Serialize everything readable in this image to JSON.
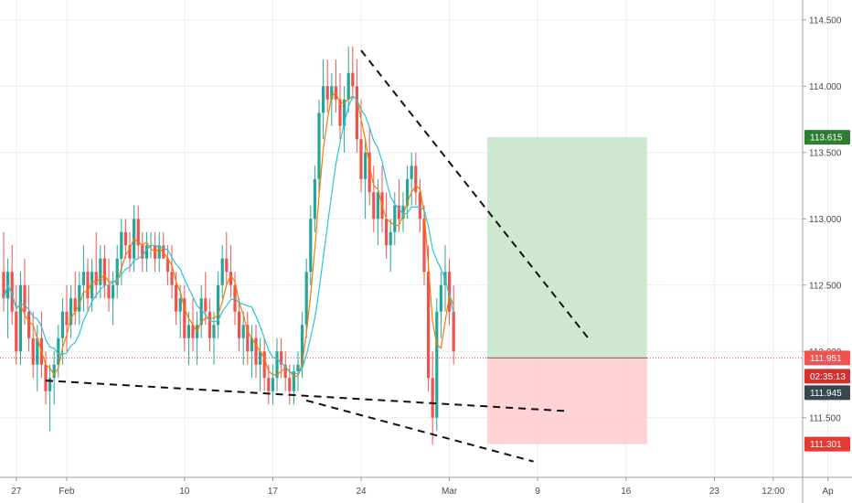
{
  "chart_data": {
    "type": "candlestick",
    "ylim": [
      111.05,
      114.65
    ],
    "grid": true,
    "price_scale_side": "right",
    "colors": {
      "up": "#26a69a",
      "down": "#ef5350",
      "ma_fast": "#f57c00",
      "ma_slow": "#26c6da",
      "profit_zone": "#c8e6c9",
      "loss_zone": "#ffcdd2",
      "current_price": "#ef5350",
      "target_badge": "#2e7d32",
      "stop_badge": "#e53935",
      "countdown_badge": "#d32f2f",
      "last_badge": "#37474f"
    },
    "x_ticks": [
      {
        "label": "27",
        "pos": 3
      },
      {
        "label": "Feb",
        "pos": 15
      },
      {
        "label": "10",
        "pos": 43
      },
      {
        "label": "17",
        "pos": 64
      },
      {
        "label": "24",
        "pos": 85
      },
      {
        "label": "Mar",
        "pos": 106
      },
      {
        "label": "9",
        "pos": 127
      },
      {
        "label": "16",
        "pos": 148
      },
      {
        "label": "23",
        "pos": 169
      },
      {
        "label": "12:00",
        "pos": 183
      },
      {
        "label": "Ap",
        "pos": 196
      }
    ],
    "y_ticks": [
      "111.500",
      "112.000",
      "112.500",
      "113.000",
      "113.500",
      "114.000",
      "114.500"
    ],
    "y_tick_values": [
      111.5,
      112.0,
      112.5,
      113.0,
      113.5,
      114.0,
      114.5
    ],
    "candles": [
      [
        112.6,
        112.9,
        112.3,
        112.4
      ],
      [
        112.4,
        112.7,
        112.1,
        112.6
      ],
      [
        112.6,
        112.8,
        112.2,
        112.3
      ],
      [
        112.3,
        112.5,
        111.9,
        112.0
      ],
      [
        112.0,
        112.6,
        111.9,
        112.5
      ],
      [
        112.5,
        112.7,
        112.2,
        112.3
      ],
      [
        112.3,
        112.5,
        112.0,
        112.1
      ],
      [
        112.1,
        112.3,
        111.8,
        111.9
      ],
      [
        111.9,
        112.2,
        111.7,
        112.1
      ],
      [
        112.1,
        112.3,
        111.8,
        111.9
      ],
      [
        111.9,
        112.0,
        111.6,
        111.7
      ],
      [
        111.7,
        111.9,
        111.4,
        111.8
      ],
      [
        111.8,
        112.0,
        111.6,
        111.9
      ],
      [
        111.9,
        112.2,
        111.8,
        112.1
      ],
      [
        112.1,
        112.4,
        111.9,
        112.3
      ],
      [
        112.3,
        112.5,
        112.0,
        112.2
      ],
      [
        112.2,
        112.5,
        112.1,
        112.4
      ],
      [
        112.4,
        112.6,
        112.2,
        112.3
      ],
      [
        112.3,
        112.6,
        112.2,
        112.5
      ],
      [
        112.5,
        112.8,
        112.3,
        112.6
      ],
      [
        112.6,
        112.7,
        112.3,
        112.4
      ],
      [
        112.4,
        112.7,
        112.3,
        112.6
      ],
      [
        112.6,
        112.9,
        112.4,
        112.5
      ],
      [
        112.5,
        112.8,
        112.4,
        112.7
      ],
      [
        112.7,
        112.8,
        112.4,
        112.5
      ],
      [
        112.5,
        112.7,
        112.3,
        112.4
      ],
      [
        112.4,
        112.6,
        112.2,
        112.5
      ],
      [
        112.5,
        112.8,
        112.4,
        112.7
      ],
      [
        112.7,
        113.0,
        112.5,
        112.9
      ],
      [
        112.9,
        113.0,
        112.7,
        112.8
      ],
      [
        112.8,
        112.9,
        112.6,
        112.7
      ],
      [
        112.7,
        113.1,
        112.6,
        113.0
      ],
      [
        113.0,
        113.1,
        112.7,
        112.8
      ],
      [
        112.8,
        112.9,
        112.6,
        112.7
      ],
      [
        112.7,
        112.9,
        112.6,
        112.8
      ],
      [
        112.8,
        112.9,
        112.7,
        112.8
      ],
      [
        112.8,
        112.9,
        112.6,
        112.7
      ],
      [
        112.7,
        112.9,
        112.6,
        112.8
      ],
      [
        112.8,
        112.9,
        112.7,
        112.7
      ],
      [
        112.7,
        112.8,
        112.5,
        112.6
      ],
      [
        112.6,
        112.8,
        112.4,
        112.5
      ],
      [
        112.5,
        112.6,
        112.2,
        112.3
      ],
      [
        112.3,
        112.5,
        112.1,
        112.4
      ],
      [
        112.4,
        112.5,
        112.0,
        112.1
      ],
      [
        112.1,
        112.3,
        111.9,
        112.2
      ],
      [
        112.2,
        112.4,
        112.0,
        112.1
      ],
      [
        112.1,
        112.3,
        111.9,
        112.2
      ],
      [
        112.2,
        112.5,
        112.1,
        112.4
      ],
      [
        112.4,
        112.6,
        112.2,
        112.3
      ],
      [
        112.3,
        112.4,
        112.0,
        112.1
      ],
      [
        112.1,
        112.3,
        111.9,
        112.2
      ],
      [
        112.2,
        112.6,
        112.1,
        112.5
      ],
      [
        112.5,
        112.8,
        112.4,
        112.7
      ],
      [
        112.7,
        112.9,
        112.5,
        112.6
      ],
      [
        112.6,
        112.8,
        112.4,
        112.5
      ],
      [
        112.5,
        112.6,
        112.2,
        112.3
      ],
      [
        112.3,
        112.4,
        112.0,
        112.1
      ],
      [
        112.1,
        112.3,
        111.9,
        112.2
      ],
      [
        112.2,
        112.3,
        111.9,
        112.0
      ],
      [
        112.0,
        112.2,
        111.8,
        112.1
      ],
      [
        112.1,
        112.2,
        111.8,
        111.9
      ],
      [
        111.9,
        112.1,
        111.7,
        112.0
      ],
      [
        112.0,
        112.1,
        111.7,
        111.8
      ],
      [
        111.8,
        111.9,
        111.6,
        111.7
      ],
      [
        111.7,
        111.9,
        111.6,
        111.8
      ],
      [
        111.8,
        112.1,
        111.7,
        112.0
      ],
      [
        112.0,
        112.1,
        111.8,
        111.9
      ],
      [
        111.9,
        112.0,
        111.7,
        111.8
      ],
      [
        111.8,
        111.9,
        111.6,
        111.7
      ],
      [
        111.7,
        111.9,
        111.6,
        111.85
      ],
      [
        111.85,
        112.0,
        111.7,
        111.9
      ],
      [
        111.9,
        112.3,
        111.8,
        112.2
      ],
      [
        112.2,
        112.7,
        112.1,
        112.6
      ],
      [
        112.6,
        113.1,
        112.5,
        113.0
      ],
      [
        113.0,
        113.4,
        112.9,
        113.3
      ],
      [
        113.3,
        113.9,
        113.2,
        113.8
      ],
      [
        113.8,
        114.2,
        113.6,
        114.0
      ],
      [
        114.0,
        114.2,
        113.8,
        113.9
      ],
      [
        113.9,
        114.1,
        113.7,
        114.0
      ],
      [
        114.0,
        114.2,
        113.8,
        113.9
      ],
      [
        113.9,
        114.1,
        113.6,
        113.7
      ],
      [
        113.7,
        114.0,
        113.5,
        113.9
      ],
      [
        113.9,
        114.3,
        113.8,
        114.1
      ],
      [
        114.1,
        114.3,
        113.9,
        114.0
      ],
      [
        114.0,
        114.2,
        113.5,
        113.6
      ],
      [
        113.6,
        113.9,
        113.2,
        113.3
      ],
      [
        113.3,
        113.6,
        113.0,
        113.5
      ],
      [
        113.5,
        113.7,
        113.1,
        113.2
      ],
      [
        113.2,
        113.4,
        112.9,
        113.0
      ],
      [
        113.0,
        113.3,
        112.8,
        113.2
      ],
      [
        113.2,
        113.4,
        112.9,
        113.0
      ],
      [
        113.0,
        113.2,
        112.7,
        112.8
      ],
      [
        112.8,
        113.0,
        112.6,
        112.9
      ],
      [
        112.9,
        113.2,
        112.8,
        113.1
      ],
      [
        113.1,
        113.3,
        112.9,
        113.0
      ],
      [
        113.0,
        113.2,
        112.9,
        113.1
      ],
      [
        113.1,
        113.4,
        113.0,
        113.3
      ],
      [
        113.3,
        113.5,
        113.1,
        113.4
      ],
      [
        113.4,
        113.5,
        113.1,
        113.2
      ],
      [
        113.2,
        113.3,
        112.9,
        113.0
      ],
      [
        113.0,
        113.1,
        112.5,
        112.6
      ],
      [
        112.6,
        112.8,
        111.7,
        111.8
      ],
      [
        111.8,
        112.0,
        111.3,
        111.5
      ],
      [
        111.5,
        112.4,
        111.4,
        112.3
      ],
      [
        112.3,
        112.6,
        112.1,
        112.5
      ],
      [
        112.5,
        112.8,
        112.3,
        112.6
      ],
      [
        112.6,
        112.7,
        112.2,
        112.3
      ],
      [
        112.3,
        112.5,
        111.9,
        112.0
      ]
    ],
    "drawings": {
      "upper_trendline": [
        [
          85,
          114.27
        ],
        [
          139,
          112.1
        ]
      ],
      "lower_support_flat": [
        [
          10,
          111.78
        ],
        [
          134,
          111.55
        ]
      ],
      "lower_support_steep": [
        [
          72,
          111.63
        ],
        [
          126,
          111.17
        ]
      ],
      "position": {
        "x_start": 115,
        "x_end": 153,
        "entry": 111.951,
        "target": 113.615,
        "stop": 111.301
      }
    },
    "price_badges": {
      "target": "113.615",
      "current": "111.951",
      "countdown": "02:35:13",
      "last": "111.945",
      "stop": "111.301"
    }
  }
}
